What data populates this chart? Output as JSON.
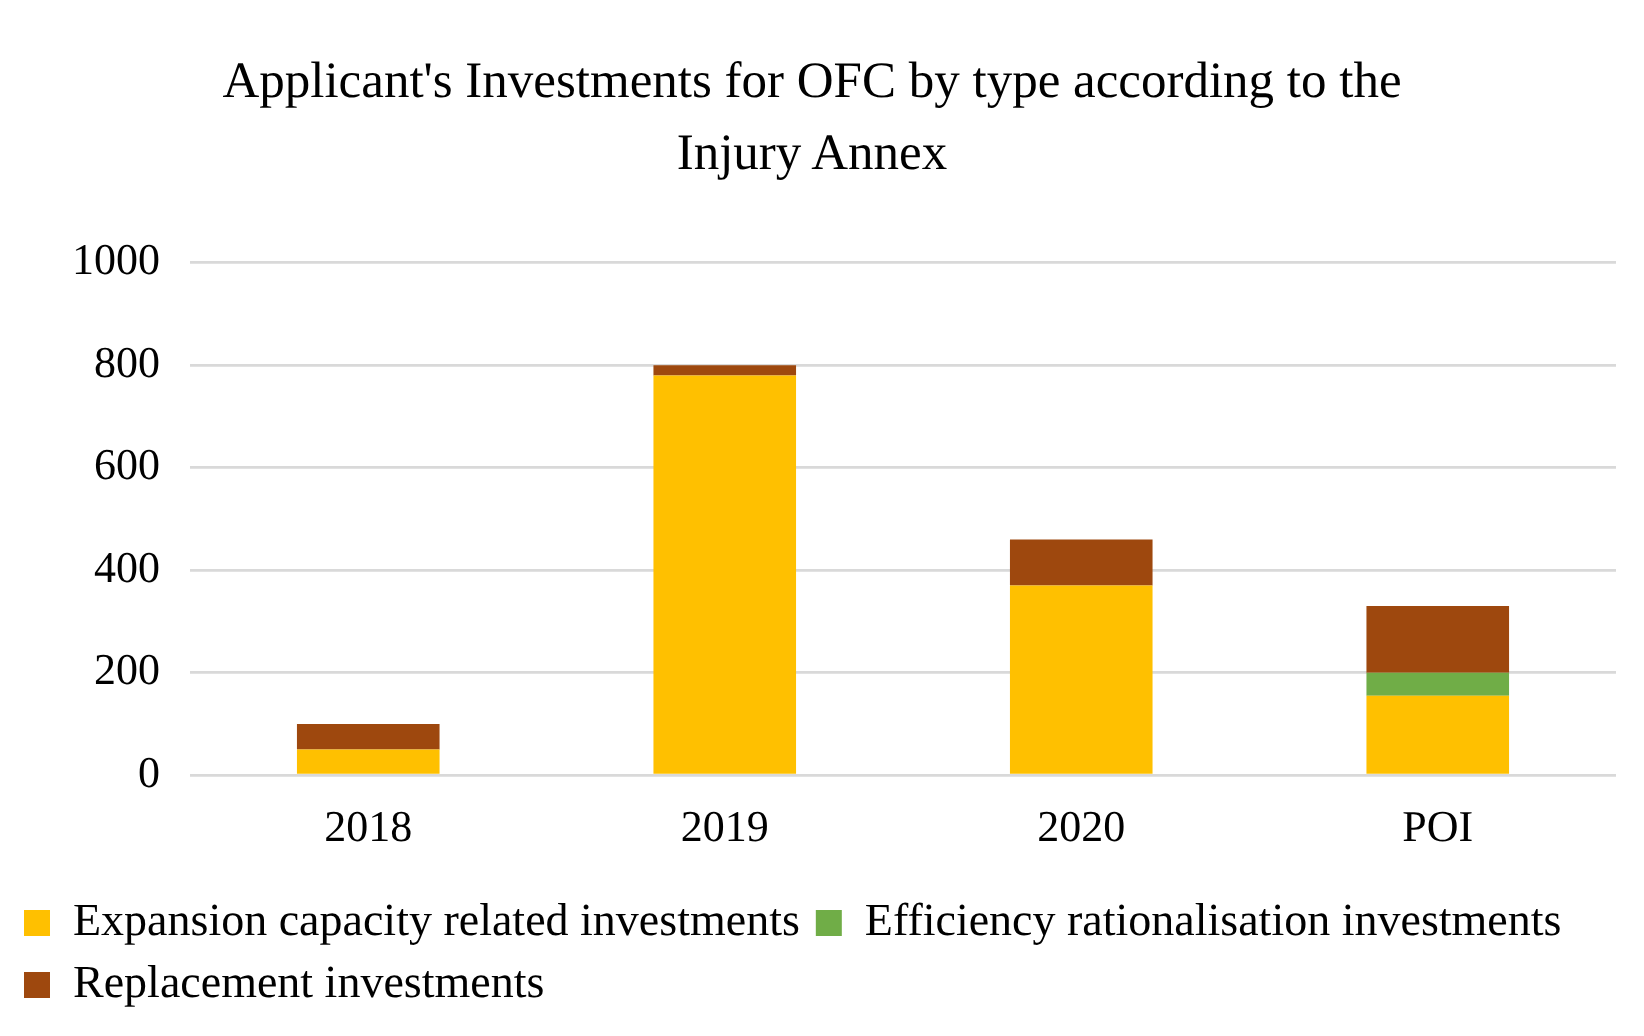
{
  "chart_data": {
    "type": "bar",
    "title": "Applicant's Investments for OFC by type according to the Injury Annex",
    "categories": [
      "2018",
      "2019",
      "2020",
      "POI"
    ],
    "series": [
      {
        "name": "Expansion capacity related investments",
        "color": "#ffc000",
        "values": [
          50,
          780,
          370,
          155
        ]
      },
      {
        "name": "Efficiency rationalisation investments",
        "color": "#70ad47",
        "values": [
          0,
          0,
          0,
          45
        ]
      },
      {
        "name": "Replacement investments",
        "color": "#9e480e",
        "values": [
          50,
          20,
          90,
          130
        ]
      }
    ],
    "stacked": true,
    "ylim": [
      0,
      1000
    ],
    "yticks": [
      0,
      200,
      400,
      600,
      800,
      1000
    ],
    "grid": "y",
    "legend": "bottom"
  }
}
